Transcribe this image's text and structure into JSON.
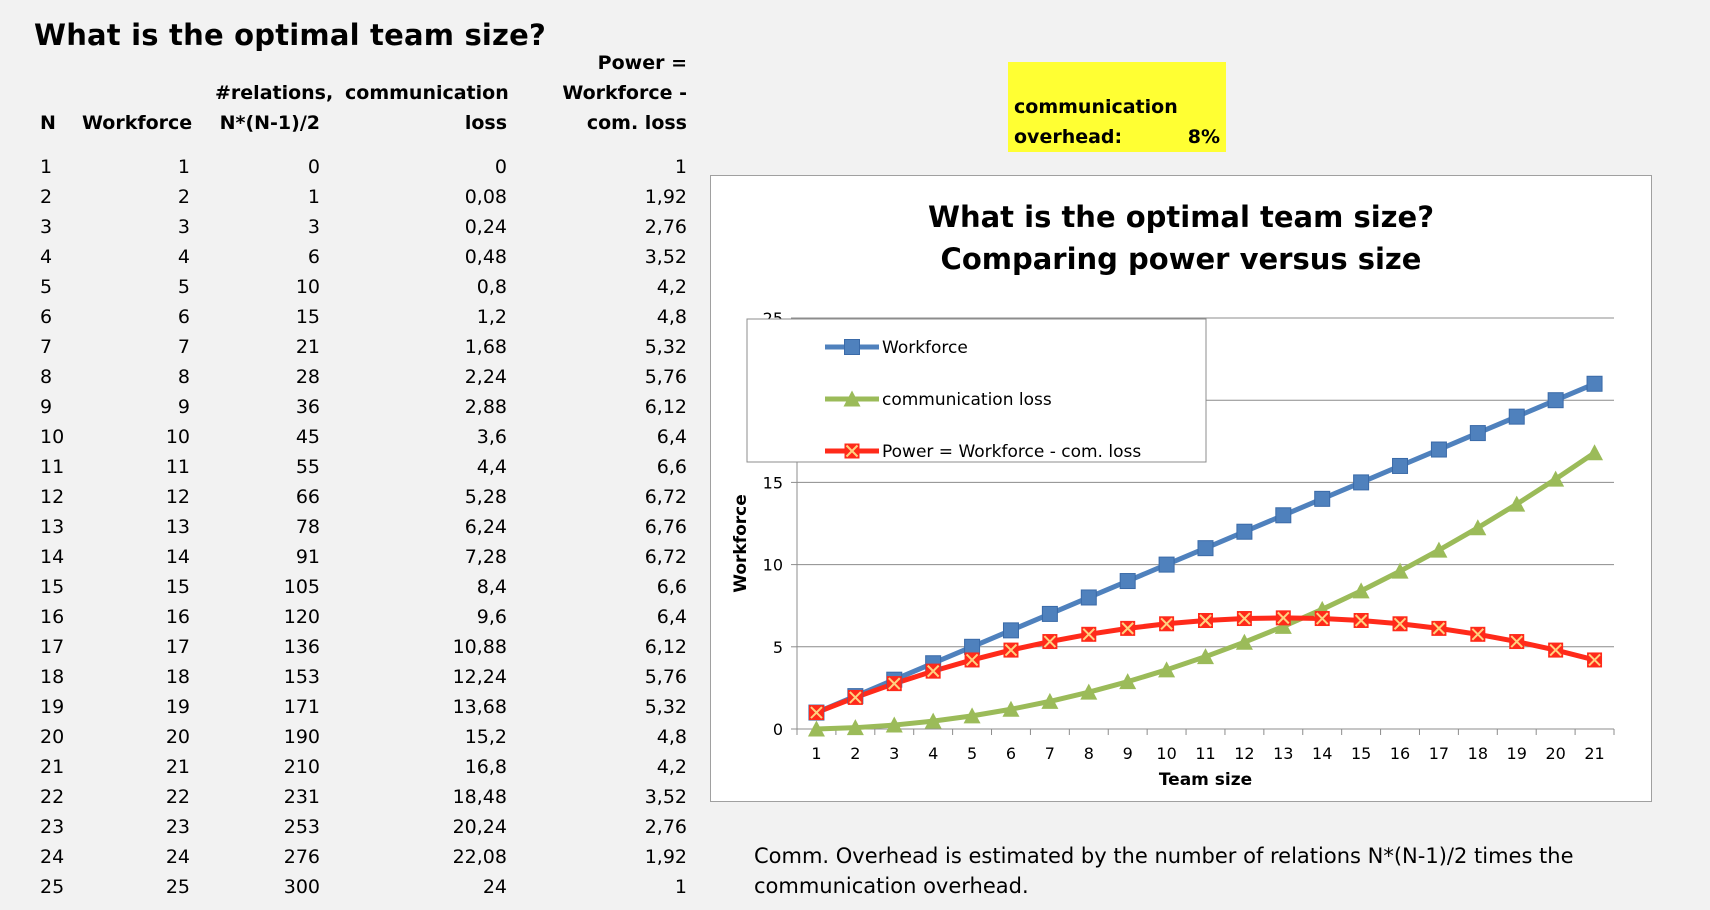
{
  "page": {
    "title": "What is the optimal team size?"
  },
  "table": {
    "headers": {
      "n": [
        "N"
      ],
      "workforce": [
        "Workforce"
      ],
      "relations": [
        "#relations,",
        "N*(N-1)/2"
      ],
      "comm_loss": [
        "communication",
        "loss"
      ],
      "power": [
        "Power =",
        "Workforce -",
        "com. loss"
      ]
    },
    "rows": [
      [
        "1",
        "1",
        "0",
        "0",
        "1"
      ],
      [
        "2",
        "2",
        "1",
        "0,08",
        "1,92"
      ],
      [
        "3",
        "3",
        "3",
        "0,24",
        "2,76"
      ],
      [
        "4",
        "4",
        "6",
        "0,48",
        "3,52"
      ],
      [
        "5",
        "5",
        "10",
        "0,8",
        "4,2"
      ],
      [
        "6",
        "6",
        "15",
        "1,2",
        "4,8"
      ],
      [
        "7",
        "7",
        "21",
        "1,68",
        "5,32"
      ],
      [
        "8",
        "8",
        "28",
        "2,24",
        "5,76"
      ],
      [
        "9",
        "9",
        "36",
        "2,88",
        "6,12"
      ],
      [
        "10",
        "10",
        "45",
        "3,6",
        "6,4"
      ],
      [
        "11",
        "11",
        "55",
        "4,4",
        "6,6"
      ],
      [
        "12",
        "12",
        "66",
        "5,28",
        "6,72"
      ],
      [
        "13",
        "13",
        "78",
        "6,24",
        "6,76"
      ],
      [
        "14",
        "14",
        "91",
        "7,28",
        "6,72"
      ],
      [
        "15",
        "15",
        "105",
        "8,4",
        "6,6"
      ],
      [
        "16",
        "16",
        "120",
        "9,6",
        "6,4"
      ],
      [
        "17",
        "17",
        "136",
        "10,88",
        "6,12"
      ],
      [
        "18",
        "18",
        "153",
        "12,24",
        "5,76"
      ],
      [
        "19",
        "19",
        "171",
        "13,68",
        "5,32"
      ],
      [
        "20",
        "20",
        "190",
        "15,2",
        "4,8"
      ],
      [
        "21",
        "21",
        "210",
        "16,8",
        "4,2"
      ],
      [
        "22",
        "22",
        "231",
        "18,48",
        "3,52"
      ],
      [
        "23",
        "23",
        "253",
        "20,24",
        "2,76"
      ],
      [
        "24",
        "24",
        "276",
        "22,08",
        "1,92"
      ],
      [
        "25",
        "25",
        "300",
        "24",
        "1"
      ]
    ]
  },
  "overhead": {
    "label_line1": "communication",
    "label_line2": "overhead:",
    "value": "8%",
    "color": "#ffff33"
  },
  "note": {
    "lines": [
      "Comm. Overhead is estimated by the number of relations N*(N-1)/2 times the",
      "communication overhead."
    ]
  },
  "chart_data": {
    "type": "line",
    "title": [
      "What is the optimal team size?",
      "Comparing power versus size"
    ],
    "xlabel": "Team size",
    "ylabel": "Workforce",
    "ylim": [
      0,
      25
    ],
    "yticks": [
      0,
      5,
      10,
      15,
      20,
      25
    ],
    "grid": true,
    "legend_position": "top-left",
    "categories": [
      "1",
      "2",
      "3",
      "4",
      "5",
      "6",
      "7",
      "8",
      "9",
      "10",
      "11",
      "12",
      "13",
      "14",
      "15",
      "16",
      "17",
      "18",
      "19",
      "20",
      "21"
    ],
    "series": [
      {
        "name": "Workforce",
        "color": "#4f81bd",
        "marker": "square",
        "values": [
          1,
          2,
          3,
          4,
          5,
          6,
          7,
          8,
          9,
          10,
          11,
          12,
          13,
          14,
          15,
          16,
          17,
          18,
          19,
          20,
          21
        ]
      },
      {
        "name": "communication loss",
        "color": "#9bbb59",
        "marker": "triangle",
        "values": [
          0,
          0.08,
          0.24,
          0.48,
          0.8,
          1.2,
          1.68,
          2.24,
          2.88,
          3.6,
          4.4,
          5.28,
          6.24,
          7.28,
          8.4,
          9.6,
          10.88,
          12.24,
          13.68,
          15.2,
          16.8
        ]
      },
      {
        "name": "Power = Workforce - com. loss",
        "color": "#ff2a1a",
        "marker": "x-square",
        "values": [
          1,
          1.92,
          2.76,
          3.52,
          4.2,
          4.8,
          5.32,
          5.76,
          6.12,
          6.4,
          6.6,
          6.72,
          6.76,
          6.72,
          6.6,
          6.4,
          6.12,
          5.76,
          5.32,
          4.8,
          4.2
        ]
      }
    ]
  }
}
